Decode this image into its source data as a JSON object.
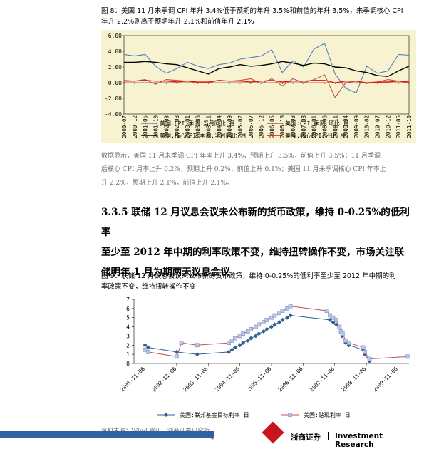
{
  "fig8": {
    "caption_line1": "图 8：美国 11 月未季调 CPI 年升 3.4%低于预期的年升 3.5%和前值的年升 3.5%，未季调核心 CPI",
    "caption_line2": "年升 2.2%则高于预期年升 2.1%和前值年升 2.1%"
  },
  "analysis": {
    "line1": "数据显示，美国 11 月未季调 CPI 年率上升 3.4%，预期上升 3.5%，前值上升 3.5%；11 月季调",
    "line2": "后核心 CPI 月率上升 0.2%，预期上升 0.2%，前值上升 0.1%；美国 11 月未季调核心 CPI 年率上",
    "line3": "升 2.2%，预期上升 2.1%，前值上升 2.1%。"
  },
  "section": {
    "line1": "3.3.5 联储 12 月议息会议未公布新的货币政策，维持 0-0.25%的低利率",
    "line2": "至少至 2012 年中期的利率政策不变，维持扭转操作不变，市场关注联",
    "line3": "储明年 1 月为期两天议息会议"
  },
  "fig9": {
    "caption_line1": "图 9：联储 12 月议息会议未公布新的货币政策，维持 0-0.25%的低利率至少至 2012 年中期的利",
    "caption_line2": "率政策不变，维持扭转操作不变"
  },
  "source": "资料来源：Wind 资讯，浙商证券研究所",
  "page_number": "9",
  "footer": {
    "brand_cn": "浙商证券",
    "brand_en": "Investment Research"
  },
  "chart_data": [
    {
      "type": "line",
      "ylim": [
        -4,
        6
      ],
      "yticks": [
        "6.00",
        "4.00",
        "2.00",
        "0.00",
        "-2.00",
        "-4.00"
      ],
      "x": [
        "2000-07",
        "2000-12",
        "2001-05",
        "2001-10",
        "2002-03",
        "2002-08",
        "2003-01",
        "2003-06",
        "2003-11",
        "2004-04",
        "2004-09",
        "2005-02",
        "2005-07",
        "2005-12",
        "2006-05",
        "2006-10",
        "2007-03",
        "2007-08",
        "2008-01",
        "2008-06",
        "2008-11",
        "2009-04",
        "2009-09",
        "2010-02",
        "2010-07",
        "2010-12",
        "2011-05",
        "2011-10"
      ],
      "series": [
        {
          "name": "美国:CPI:季调:当月同比 月",
          "color": "#4f81bd",
          "values": [
            3.6,
            3.4,
            3.6,
            2.1,
            1.2,
            1.8,
            2.6,
            2.1,
            1.8,
            2.3,
            2.5,
            3.0,
            3.2,
            3.4,
            4.2,
            1.3,
            2.8,
            2.0,
            4.3,
            5.0,
            1.1,
            -0.7,
            -1.3,
            2.1,
            1.2,
            1.5,
            3.6,
            3.5
          ]
        },
        {
          "name": "美国:CPI:季调:环比 月",
          "color": "#c0504d",
          "values": [
            0.3,
            0.2,
            0.4,
            -0.2,
            0.4,
            0.3,
            0.2,
            0.0,
            0.0,
            0.3,
            0.2,
            0.3,
            0.5,
            -0.1,
            0.5,
            -0.4,
            0.5,
            0.0,
            0.4,
            1.0,
            -1.9,
            0.0,
            0.2,
            -0.1,
            0.1,
            0.4,
            0.2,
            0.0
          ]
        },
        {
          "name": "美国:核心CPI:季调:当月同比 月",
          "color": "#000000",
          "values": [
            2.6,
            2.6,
            2.7,
            2.6,
            2.4,
            2.3,
            1.9,
            1.5,
            1.1,
            1.8,
            2.0,
            2.3,
            2.1,
            2.2,
            2.4,
            2.7,
            2.5,
            2.2,
            2.5,
            2.4,
            2.0,
            1.9,
            1.5,
            1.3,
            0.9,
            0.8,
            1.5,
            2.1
          ]
        },
        {
          "name": "美国:核心CPI:环比 月",
          "color": "#ff0000",
          "values": [
            0.2,
            0.2,
            0.3,
            0.2,
            0.2,
            0.1,
            0.2,
            0.1,
            0.1,
            0.3,
            0.2,
            0.2,
            0.1,
            0.2,
            0.3,
            0.1,
            0.2,
            0.2,
            0.3,
            0.3,
            0.0,
            0.2,
            0.2,
            0.0,
            0.1,
            0.1,
            0.2,
            0.1
          ]
        }
      ]
    },
    {
      "type": "line",
      "ylim": [
        0,
        7
      ],
      "yticks": [
        "0",
        "1",
        "2",
        "3",
        "4",
        "5",
        "6",
        "7"
      ],
      "x_labels": [
        "2001-11-06",
        "2002-11-06",
        "2003-11-06",
        "2004-11-06",
        "2005-11-06",
        "2006-11-06",
        "2007-11-06",
        "2008-11-06",
        "2009-11-06"
      ],
      "x_range": [
        2001.5,
        2010.2
      ],
      "series": [
        {
          "name": "美国:联邦基金目标利率 日",
          "color": "#2e5f95",
          "marker": "diamond",
          "points": [
            [
              2001.85,
              2.0
            ],
            [
              2001.95,
              1.75
            ],
            [
              2002.85,
              1.25
            ],
            [
              2003.5,
              1.0
            ],
            [
              2004.5,
              1.25
            ],
            [
              2004.6,
              1.5
            ],
            [
              2004.7,
              1.75
            ],
            [
              2004.85,
              2.0
            ],
            [
              2004.95,
              2.25
            ],
            [
              2005.1,
              2.5
            ],
            [
              2005.2,
              2.75
            ],
            [
              2005.35,
              3.0
            ],
            [
              2005.45,
              3.25
            ],
            [
              2005.6,
              3.5
            ],
            [
              2005.7,
              3.75
            ],
            [
              2005.85,
              4.0
            ],
            [
              2005.95,
              4.25
            ],
            [
              2006.1,
              4.5
            ],
            [
              2006.2,
              4.75
            ],
            [
              2006.35,
              5.0
            ],
            [
              2006.45,
              5.25
            ],
            [
              2007.7,
              4.75
            ],
            [
              2007.8,
              4.5
            ],
            [
              2007.9,
              4.25
            ],
            [
              2008.05,
              3.5
            ],
            [
              2008.08,
              3.0
            ],
            [
              2008.2,
              2.25
            ],
            [
              2008.3,
              2.0
            ],
            [
              2008.75,
              1.5
            ],
            [
              2008.8,
              1.0
            ],
            [
              2008.95,
              0.25
            ]
          ]
        },
        {
          "name": "美国:贴现利率 日",
          "color": "#c0504d",
          "marker": "square",
          "points": [
            [
              2001.85,
              1.5
            ],
            [
              2001.95,
              1.25
            ],
            [
              2002.85,
              0.75
            ],
            [
              2003.0,
              2.25
            ],
            [
              2003.5,
              2.0
            ],
            [
              2004.5,
              2.25
            ],
            [
              2004.6,
              2.5
            ],
            [
              2004.7,
              2.75
            ],
            [
              2004.85,
              3.0
            ],
            [
              2004.95,
              3.25
            ],
            [
              2005.1,
              3.5
            ],
            [
              2005.2,
              3.75
            ],
            [
              2005.35,
              4.0
            ],
            [
              2005.45,
              4.25
            ],
            [
              2005.6,
              4.5
            ],
            [
              2005.7,
              4.75
            ],
            [
              2005.85,
              5.0
            ],
            [
              2005.95,
              5.25
            ],
            [
              2006.1,
              5.5
            ],
            [
              2006.2,
              5.75
            ],
            [
              2006.35,
              6.0
            ],
            [
              2006.45,
              6.25
            ],
            [
              2007.6,
              5.75
            ],
            [
              2007.7,
              5.25
            ],
            [
              2007.8,
              5.0
            ],
            [
              2007.9,
              4.75
            ],
            [
              2008.0,
              4.0
            ],
            [
              2008.05,
              3.5
            ],
            [
              2008.1,
              3.25
            ],
            [
              2008.2,
              2.5
            ],
            [
              2008.3,
              2.25
            ],
            [
              2008.75,
              1.75
            ],
            [
              2008.8,
              1.25
            ],
            [
              2008.95,
              0.5
            ],
            [
              2010.15,
              0.75
            ]
          ]
        }
      ]
    }
  ]
}
